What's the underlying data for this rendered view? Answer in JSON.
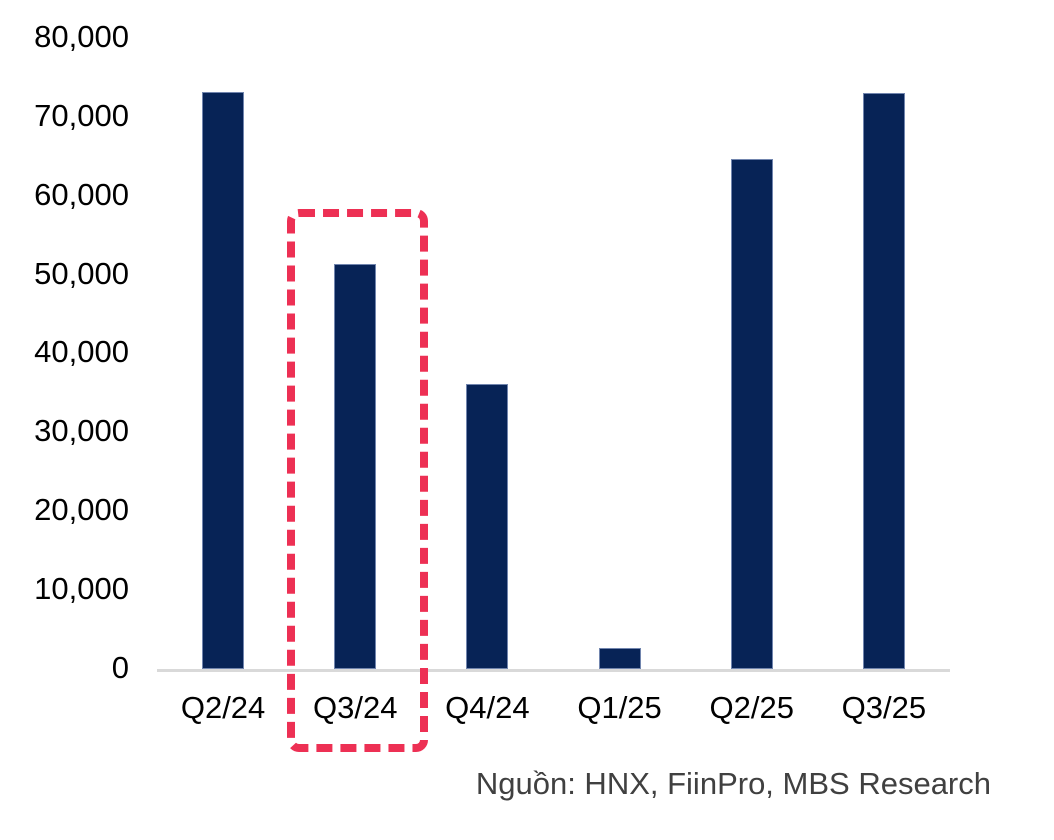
{
  "chart_data": {
    "type": "bar",
    "categories": [
      "Q2/24",
      "Q3/24",
      "Q4/24",
      "Q1/25",
      "Q2/25",
      "Q3/25"
    ],
    "values": [
      73100,
      51300,
      36100,
      2600,
      64600,
      73000
    ],
    "title": "",
    "xlabel": "",
    "ylabel": "",
    "ylim": [
      0,
      80000
    ],
    "ytick_step": 10000,
    "ytick_labels": [
      "0",
      "10,000",
      "20,000",
      "30,000",
      "40,000",
      "50,000",
      "60,000",
      "70,000",
      "80,000"
    ],
    "grid": false,
    "legend": false,
    "bar_color": "#072356",
    "axis_line_color": "#d9d9d9",
    "highlight": {
      "category": "Q3/24",
      "category_index": 1,
      "style": "dashed-box",
      "color": "#ed3054"
    }
  },
  "source_note": "Nguồn: HNX, FiinPro, MBS Research",
  "colors": {
    "bar": "#072356",
    "highlight": "#ed3054",
    "axis_line": "#d9d9d9",
    "tick_text": "#000000",
    "source_text": "#404040"
  }
}
